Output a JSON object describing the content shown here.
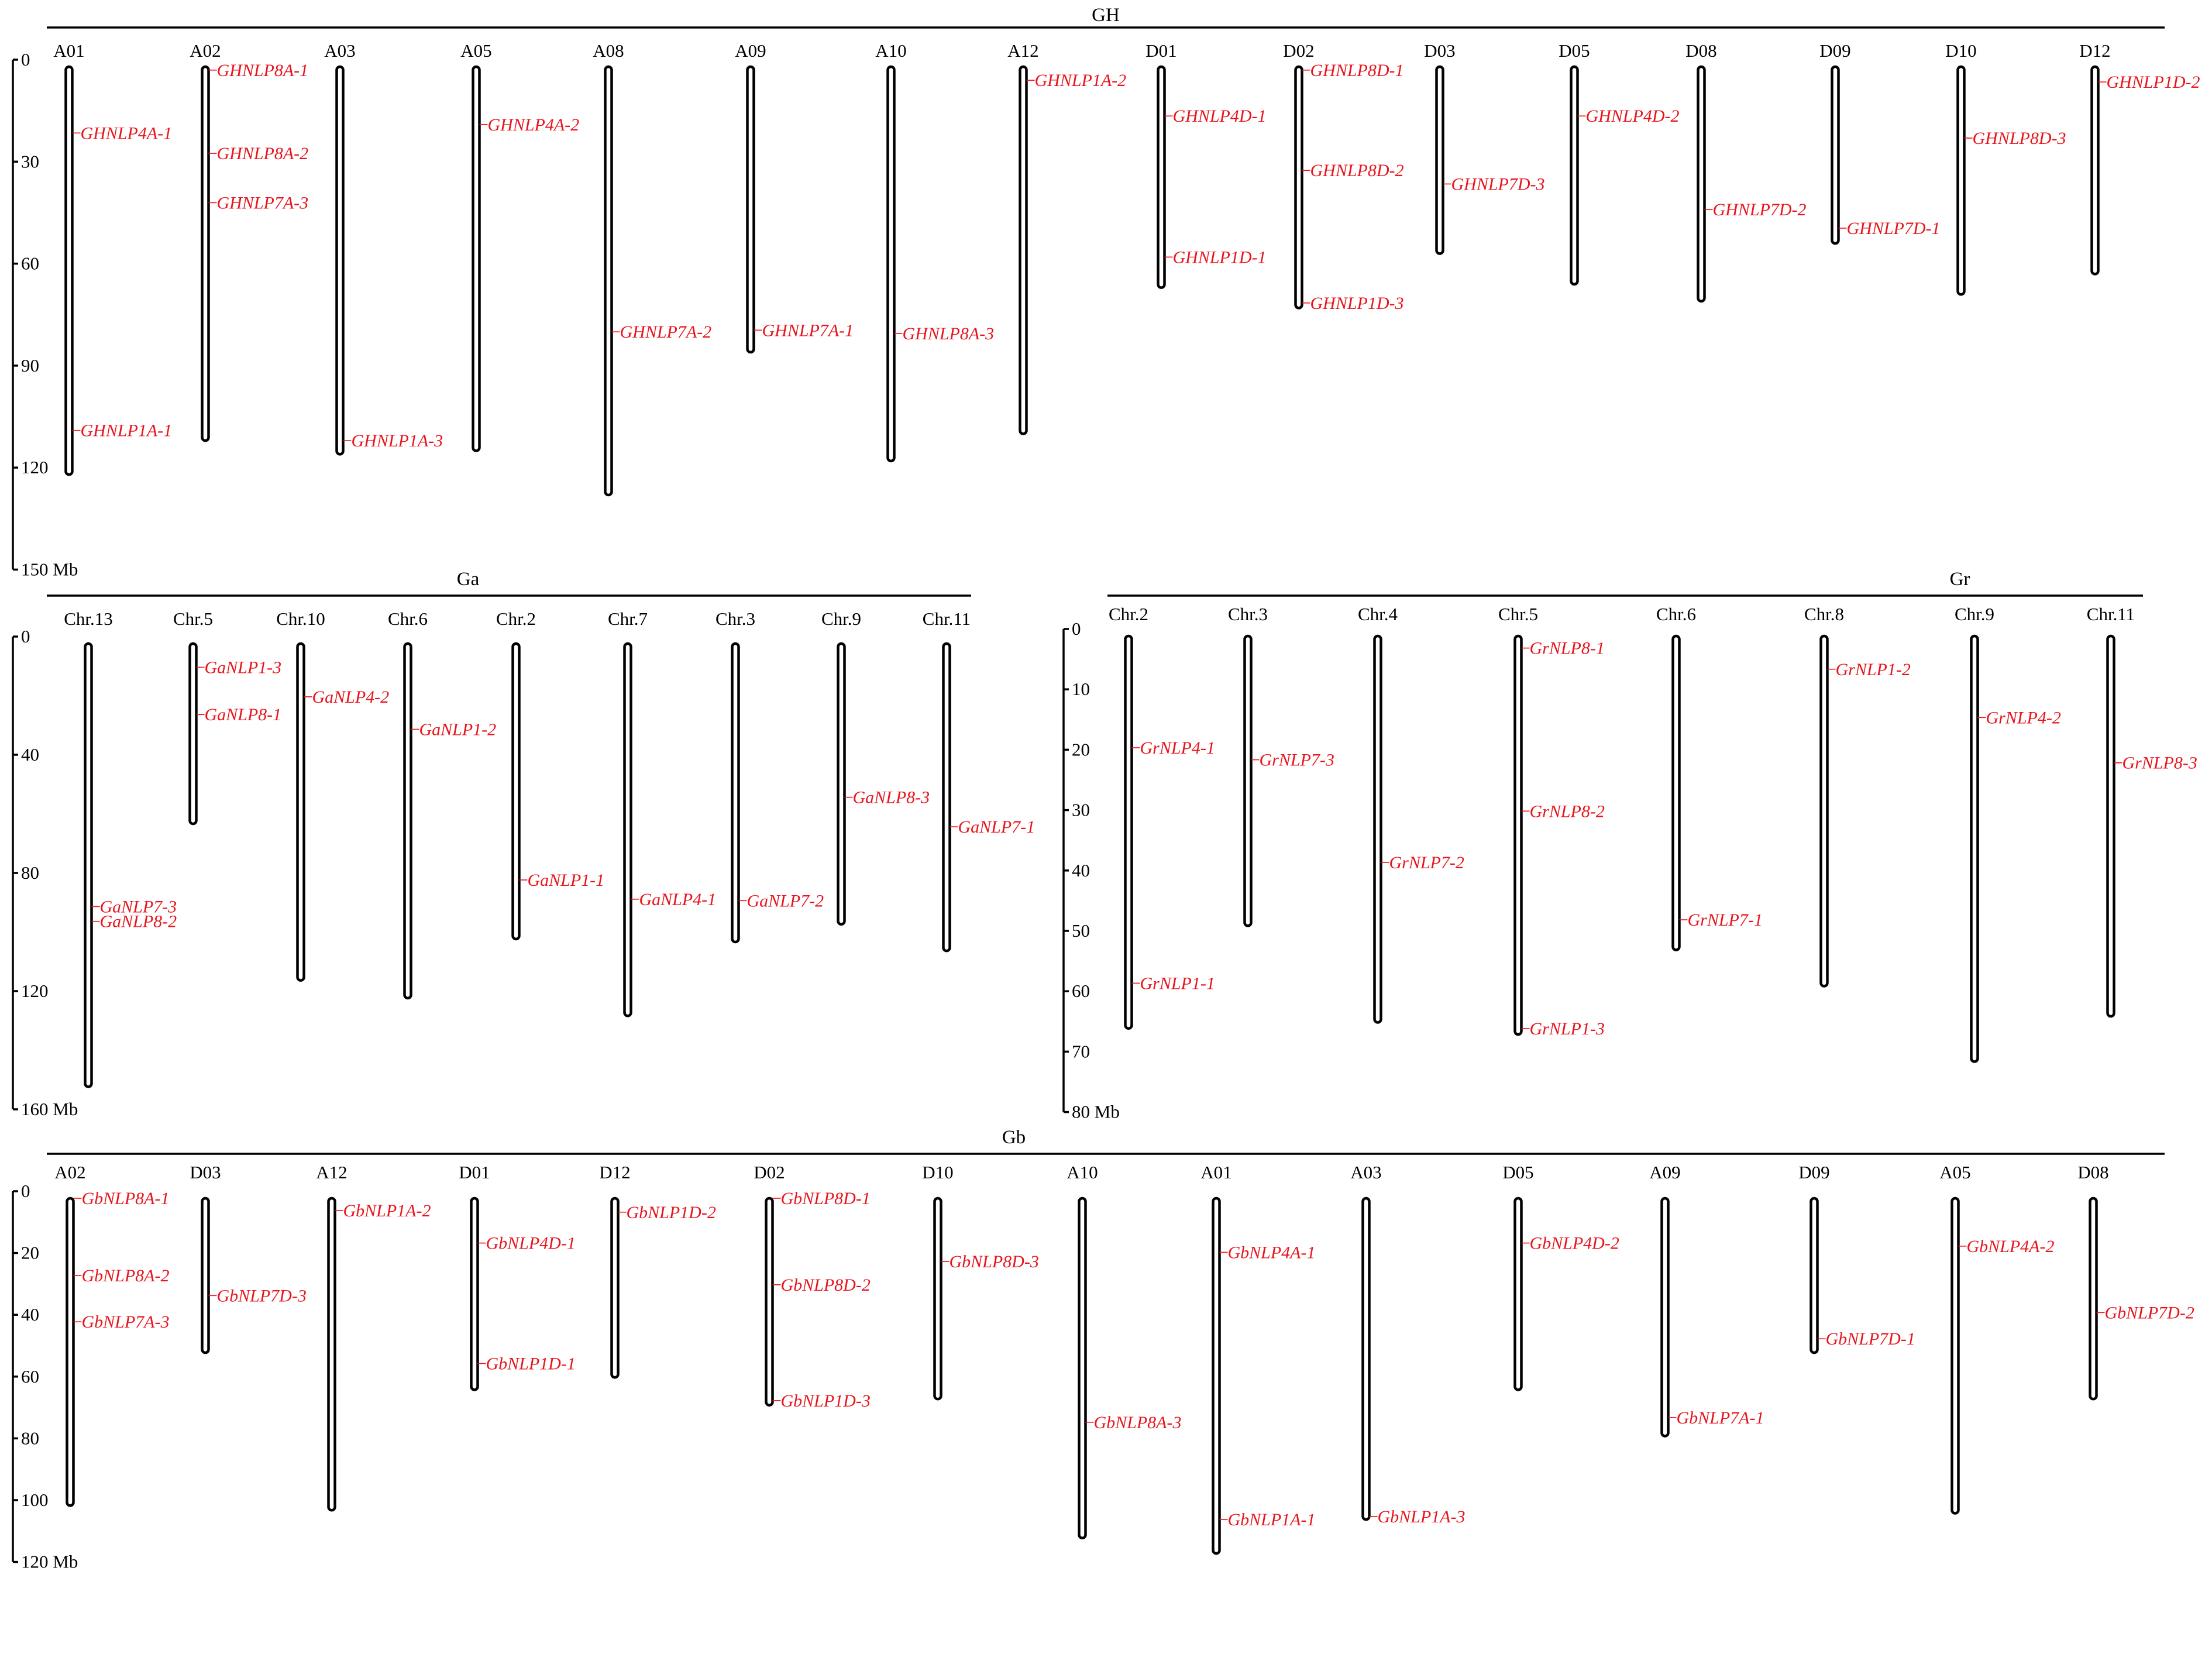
{
  "panels": [
    {
      "id": "gh",
      "title": "GH",
      "axis_ticks": [
        "0",
        "30",
        "60",
        "90",
        "120",
        "150 Mb"
      ],
      "tick_values": [
        0,
        30,
        60,
        90,
        120,
        150
      ],
      "axis_max": 150,
      "chromosomes": [
        {
          "name": "A01",
          "length": 120,
          "genes": [
            {
              "name": "GHNLP4A-1",
              "pos": 19.5
            },
            {
              "name": "GHNLP1A-1",
              "pos": 107
            }
          ]
        },
        {
          "name": "A02",
          "length": 110,
          "genes": [
            {
              "name": "GHNLP8A-1",
              "pos": 1
            },
            {
              "name": "GHNLP8A-2",
              "pos": 25.5
            },
            {
              "name": "GHNLP7A-3",
              "pos": 40
            }
          ]
        },
        {
          "name": "A03",
          "length": 114,
          "genes": [
            {
              "name": "GHNLP1A-3",
              "pos": 110
            }
          ]
        },
        {
          "name": "A05",
          "length": 113,
          "genes": [
            {
              "name": "GHNLP4A-2",
              "pos": 17
            }
          ]
        },
        {
          "name": "A08",
          "length": 126,
          "genes": [
            {
              "name": "GHNLP7A-2",
              "pos": 78
            }
          ]
        },
        {
          "name": "A09",
          "length": 84,
          "genes": [
            {
              "name": "GHNLP7A-1",
              "pos": 77.5
            }
          ]
        },
        {
          "name": "A10",
          "length": 116,
          "genes": [
            {
              "name": "GHNLP8A-3",
              "pos": 78.5
            }
          ]
        },
        {
          "name": "A12",
          "length": 108,
          "genes": [
            {
              "name": "GHNLP1A-2",
              "pos": 4
            }
          ]
        },
        {
          "name": "D01",
          "length": 65,
          "genes": [
            {
              "name": "GHNLP4D-1",
              "pos": 14.5
            },
            {
              "name": "GHNLP1D-1",
              "pos": 56
            }
          ]
        },
        {
          "name": "D02",
          "length": 71,
          "genes": [
            {
              "name": "GHNLP8D-1",
              "pos": 1
            },
            {
              "name": "GHNLP8D-2",
              "pos": 30.5
            },
            {
              "name": "GHNLP1D-3",
              "pos": 69.5
            }
          ]
        },
        {
          "name": "D03",
          "length": 55,
          "genes": [
            {
              "name": "GHNLP7D-3",
              "pos": 34.5
            }
          ]
        },
        {
          "name": "D05",
          "length": 64,
          "genes": [
            {
              "name": "GHNLP4D-2",
              "pos": 14.5
            }
          ]
        },
        {
          "name": "D08",
          "length": 69,
          "genes": [
            {
              "name": "GHNLP7D-2",
              "pos": 42
            }
          ]
        },
        {
          "name": "D09",
          "length": 52,
          "genes": [
            {
              "name": "GHNLP7D-1",
              "pos": 47.5
            }
          ]
        },
        {
          "name": "D10",
          "length": 67,
          "genes": [
            {
              "name": "GHNLP8D-3",
              "pos": 21
            }
          ]
        },
        {
          "name": "D12",
          "length": 61,
          "genes": [
            {
              "name": "GHNLP1D-2",
              "pos": 4.5
            }
          ]
        }
      ]
    },
    {
      "id": "ga",
      "title": "Ga",
      "axis_ticks": [
        "0",
        "40",
        "80",
        "120",
        "160 Mb"
      ],
      "tick_values": [
        0,
        40,
        80,
        120,
        160
      ],
      "axis_max": 160,
      "chromosomes": [
        {
          "name": "Chr.13",
          "length": 150,
          "genes": [
            {
              "name": "GaNLP7-3",
              "pos": 89
            },
            {
              "name": "GaNLP8-2",
              "pos": 94
            }
          ]
        },
        {
          "name": "Chr.5",
          "length": 61,
          "genes": [
            {
              "name": "GaNLP1-3",
              "pos": 8
            },
            {
              "name": "GaNLP8-1",
              "pos": 24
            }
          ]
        },
        {
          "name": "Chr.10",
          "length": 114,
          "genes": [
            {
              "name": "GaNLP4-2",
              "pos": 18
            }
          ]
        },
        {
          "name": "Chr.6",
          "length": 120,
          "genes": [
            {
              "name": "GaNLP1-2",
              "pos": 29
            }
          ]
        },
        {
          "name": "Chr.2",
          "length": 100,
          "genes": [
            {
              "name": "GaNLP1-1",
              "pos": 80
            }
          ]
        },
        {
          "name": "Chr.7",
          "length": 126,
          "genes": [
            {
              "name": "GaNLP4-1",
              "pos": 86.5
            }
          ]
        },
        {
          "name": "Chr.3",
          "length": 101,
          "genes": [
            {
              "name": "GaNLP7-2",
              "pos": 87
            }
          ]
        },
        {
          "name": "Chr.9",
          "length": 95,
          "genes": [
            {
              "name": "GaNLP8-3",
              "pos": 52
            }
          ]
        },
        {
          "name": "Chr.11",
          "length": 104,
          "genes": [
            {
              "name": "GaNLP7-1",
              "pos": 62
            }
          ]
        }
      ]
    },
    {
      "id": "gr",
      "title": "Gr",
      "axis_ticks": [
        "0",
        "10",
        "20",
        "30",
        "40",
        "50",
        "60",
        "70",
        "80 Mb"
      ],
      "tick_values": [
        0,
        10,
        20,
        30,
        40,
        50,
        60,
        70,
        80
      ],
      "axis_max": 80,
      "chromosomes": [
        {
          "name": "Chr.2",
          "length": 65,
          "genes": [
            {
              "name": "GrNLP4-1",
              "pos": 18.5
            },
            {
              "name": "GrNLP1-1",
              "pos": 57.5
            }
          ]
        },
        {
          "name": "Chr.3",
          "length": 48,
          "genes": [
            {
              "name": "GrNLP7-3",
              "pos": 20.5
            }
          ]
        },
        {
          "name": "Chr.4",
          "length": 64,
          "genes": [
            {
              "name": "GrNLP7-2",
              "pos": 37.5
            }
          ]
        },
        {
          "name": "Chr.5",
          "length": 66,
          "genes": [
            {
              "name": "GrNLP8-1",
              "pos": 2
            },
            {
              "name": "GrNLP8-2",
              "pos": 29
            },
            {
              "name": "GrNLP1-3",
              "pos": 65
            }
          ]
        },
        {
          "name": "Chr.6",
          "length": 52,
          "genes": [
            {
              "name": "GrNLP7-1",
              "pos": 47
            }
          ]
        },
        {
          "name": "Chr.8",
          "length": 58,
          "genes": [
            {
              "name": "GrNLP1-2",
              "pos": 5.5
            }
          ]
        },
        {
          "name": "Chr.9",
          "length": 70.5,
          "genes": [
            {
              "name": "GrNLP4-2",
              "pos": 13.5
            }
          ]
        },
        {
          "name": "Chr.11",
          "length": 63,
          "genes": [
            {
              "name": "GrNLP8-3",
              "pos": 21
            }
          ]
        }
      ]
    },
    {
      "id": "gb",
      "title": "Gb",
      "axis_ticks": [
        "0",
        "20",
        "40",
        "60",
        "80",
        "100",
        "120 Mb"
      ],
      "tick_values": [
        0,
        20,
        40,
        60,
        80,
        100,
        120
      ],
      "axis_max": 120,
      "chromosomes": [
        {
          "name": "A02",
          "length": 99.5,
          "genes": [
            {
              "name": "GbNLP8A-1",
              "pos": 0
            },
            {
              "name": "GbNLP8A-2",
              "pos": 25
            },
            {
              "name": "GbNLP7A-3",
              "pos": 40
            }
          ]
        },
        {
          "name": "D03",
          "length": 50,
          "genes": [
            {
              "name": "GbNLP7D-3",
              "pos": 31.5
            }
          ]
        },
        {
          "name": "A12",
          "length": 101,
          "genes": [
            {
              "name": "GbNLP1A-2",
              "pos": 4
            }
          ]
        },
        {
          "name": "D01",
          "length": 62,
          "genes": [
            {
              "name": "GbNLP4D-1",
              "pos": 14.5
            },
            {
              "name": "GbNLP1D-1",
              "pos": 53.5
            }
          ]
        },
        {
          "name": "D12",
          "length": 58,
          "genes": [
            {
              "name": "GbNLP1D-2",
              "pos": 4.5
            }
          ]
        },
        {
          "name": "D02",
          "length": 67,
          "genes": [
            {
              "name": "GbNLP8D-1",
              "pos": 0
            },
            {
              "name": "GbNLP8D-2",
              "pos": 28
            },
            {
              "name": "GbNLP1D-3",
              "pos": 65.5
            }
          ]
        },
        {
          "name": "D10",
          "length": 65,
          "genes": [
            {
              "name": "GbNLP8D-3",
              "pos": 20.5
            }
          ]
        },
        {
          "name": "A10",
          "length": 110,
          "genes": [
            {
              "name": "GbNLP8A-3",
              "pos": 72.5
            }
          ]
        },
        {
          "name": "A01",
          "length": 115,
          "genes": [
            {
              "name": "GbNLP4A-1",
              "pos": 17.5
            },
            {
              "name": "GbNLP1A-1",
              "pos": 104
            }
          ]
        },
        {
          "name": "A03",
          "length": 104,
          "genes": [
            {
              "name": "GbNLP1A-3",
              "pos": 103
            }
          ]
        },
        {
          "name": "D05",
          "length": 62,
          "genes": [
            {
              "name": "GbNLP4D-2",
              "pos": 14.5
            }
          ]
        },
        {
          "name": "A09",
          "length": 77,
          "genes": [
            {
              "name": "GbNLP7A-1",
              "pos": 71
            }
          ]
        },
        {
          "name": "D09",
          "length": 50,
          "genes": [
            {
              "name": "GbNLP7D-1",
              "pos": 45.5
            }
          ]
        },
        {
          "name": "A05",
          "length": 102,
          "genes": [
            {
              "name": "GbNLP4A-2",
              "pos": 15.5
            }
          ]
        },
        {
          "name": "D08",
          "length": 65,
          "genes": [
            {
              "name": "GbNLP7D-2",
              "pos": 37
            }
          ]
        }
      ]
    }
  ]
}
